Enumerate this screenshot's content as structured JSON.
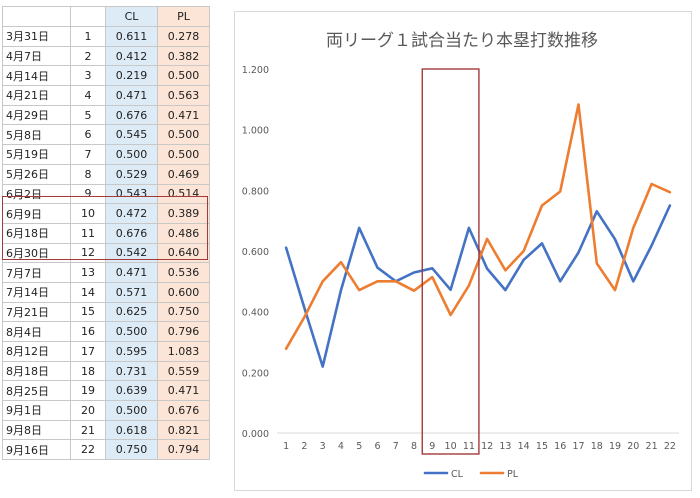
{
  "table": {
    "headers": [
      "",
      "",
      "CL",
      "PL"
    ],
    "rows": [
      [
        "3月31日",
        "1",
        "0.611",
        "0.278"
      ],
      [
        "4月7日",
        "2",
        "0.412",
        "0.382"
      ],
      [
        "4月14日",
        "3",
        "0.219",
        "0.500"
      ],
      [
        "4月21日",
        "4",
        "0.471",
        "0.563"
      ],
      [
        "4月29日",
        "5",
        "0.676",
        "0.471"
      ],
      [
        "5月8日",
        "6",
        "0.545",
        "0.500"
      ],
      [
        "5月19日",
        "7",
        "0.500",
        "0.500"
      ],
      [
        "5月26日",
        "8",
        "0.529",
        "0.469"
      ],
      [
        "6月2日",
        "9",
        "0.543",
        "0.514"
      ],
      [
        "6月9日",
        "10",
        "0.472",
        "0.389"
      ],
      [
        "6月18日",
        "11",
        "0.676",
        "0.486"
      ],
      [
        "6月30日",
        "12",
        "0.542",
        "0.640"
      ],
      [
        "7月7日",
        "13",
        "0.471",
        "0.536"
      ],
      [
        "7月14日",
        "14",
        "0.571",
        "0.600"
      ],
      [
        "7月21日",
        "15",
        "0.625",
        "0.750"
      ],
      [
        "8月4日",
        "16",
        "0.500",
        "0.796"
      ],
      [
        "8月12日",
        "17",
        "0.595",
        "1.083"
      ],
      [
        "8月18日",
        "18",
        "0.731",
        "0.559"
      ],
      [
        "8月25日",
        "19",
        "0.639",
        "0.471"
      ],
      [
        "9月1日",
        "20",
        "0.500",
        "0.676"
      ],
      [
        "9月8日",
        "21",
        "0.618",
        "0.821"
      ],
      [
        "9月16日",
        "22",
        "0.750",
        "0.794"
      ]
    ]
  },
  "colors": {
    "cl": "#4472c4",
    "pl": "#ed7d31",
    "highlight": "#a33a3a",
    "cl_fill": "#ddebf7",
    "pl_fill": "#fce4d6"
  },
  "chart_data": {
    "type": "line",
    "title": "両リーグ１試合当たり本塁打数推移",
    "xlabel": "",
    "ylabel": "",
    "x": [
      1,
      2,
      3,
      4,
      5,
      6,
      7,
      8,
      9,
      10,
      11,
      12,
      13,
      14,
      15,
      16,
      17,
      18,
      19,
      20,
      21,
      22
    ],
    "ylim": [
      0,
      1.2
    ],
    "yticks": [
      "0.000",
      "0.200",
      "0.400",
      "0.600",
      "0.800",
      "1.000",
      "1.200"
    ],
    "grid": false,
    "legend": "bottom",
    "highlight_x_range": [
      9,
      11
    ],
    "series": [
      {
        "name": "CL",
        "color": "#4472c4",
        "values": [
          0.611,
          0.412,
          0.219,
          0.471,
          0.676,
          0.545,
          0.5,
          0.529,
          0.543,
          0.472,
          0.676,
          0.542,
          0.471,
          0.571,
          0.625,
          0.5,
          0.595,
          0.731,
          0.639,
          0.5,
          0.618,
          0.75
        ]
      },
      {
        "name": "PL",
        "color": "#ed7d31",
        "values": [
          0.278,
          0.382,
          0.5,
          0.563,
          0.471,
          0.5,
          0.5,
          0.469,
          0.514,
          0.389,
          0.486,
          0.64,
          0.536,
          0.6,
          0.75,
          0.796,
          1.083,
          0.559,
          0.471,
          0.676,
          0.821,
          0.794
        ]
      }
    ]
  }
}
